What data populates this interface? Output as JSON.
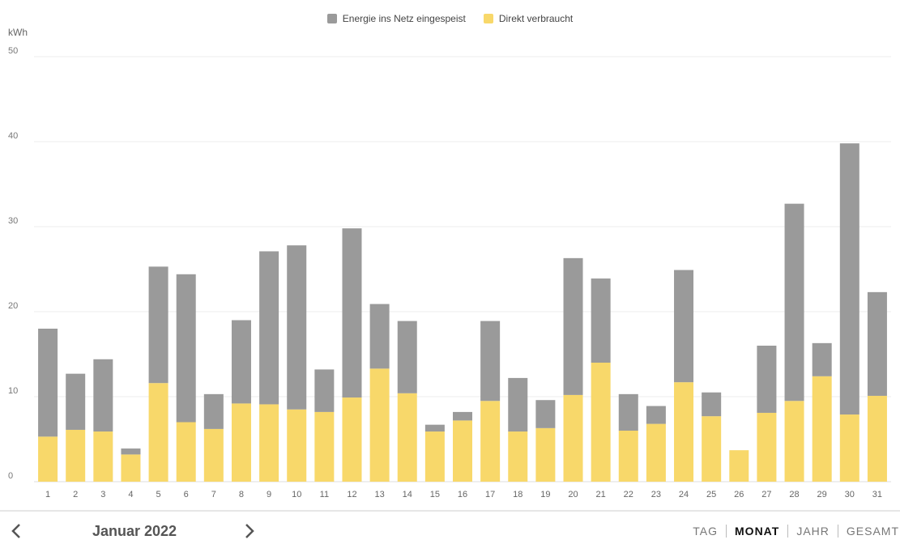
{
  "legend": {
    "fed_in_label": "Energie ins Netz eingespeist",
    "fed_in_color": "#9a9a9a",
    "direct_label": "Direkt verbraucht",
    "direct_color": "#f8d86a"
  },
  "chart_data": {
    "type": "bar",
    "stacked": true,
    "ylabel": "kWh",
    "ylim": [
      0,
      50
    ],
    "yticks": [
      0,
      10,
      20,
      30,
      40,
      50
    ],
    "categories": [
      "1",
      "2",
      "3",
      "4",
      "5",
      "6",
      "7",
      "8",
      "9",
      "10",
      "11",
      "12",
      "13",
      "14",
      "15",
      "16",
      "17",
      "18",
      "19",
      "20",
      "21",
      "22",
      "23",
      "24",
      "25",
      "26",
      "27",
      "28",
      "29",
      "30",
      "31"
    ],
    "series": [
      {
        "name": "Direkt verbraucht",
        "color": "#f8d86a",
        "values": [
          5.3,
          6.1,
          5.9,
          3.2,
          11.6,
          7.0,
          6.2,
          9.2,
          9.1,
          8.5,
          8.2,
          9.9,
          13.3,
          10.4,
          5.9,
          7.2,
          9.5,
          5.9,
          6.3,
          10.2,
          14.0,
          6.0,
          6.8,
          11.7,
          7.7,
          3.7,
          8.1,
          9.5,
          12.4,
          7.9,
          10.1
        ]
      },
      {
        "name": "Energie ins Netz eingespeist",
        "color": "#9a9a9a",
        "values": [
          12.7,
          6.6,
          8.5,
          0.7,
          13.7,
          17.4,
          4.1,
          9.8,
          18.0,
          19.3,
          5.0,
          19.9,
          7.6,
          8.5,
          0.8,
          1.0,
          9.4,
          6.3,
          3.3,
          16.1,
          9.9,
          4.3,
          2.1,
          13.2,
          2.8,
          0.0,
          7.9,
          23.2,
          3.9,
          31.9,
          12.2
        ]
      }
    ]
  },
  "footer": {
    "month": "Januar 2022",
    "modes": [
      "TAG",
      "MONAT",
      "JAHR",
      "GESAMT"
    ],
    "active_mode": "MONAT"
  }
}
